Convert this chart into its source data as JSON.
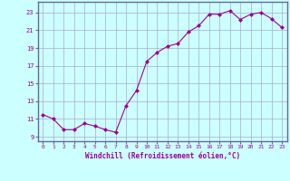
{
  "x": [
    0,
    1,
    2,
    3,
    4,
    5,
    6,
    7,
    8,
    9,
    10,
    11,
    12,
    13,
    14,
    15,
    16,
    17,
    18,
    19,
    20,
    21,
    22,
    23
  ],
  "y": [
    11.5,
    11.0,
    9.8,
    9.8,
    10.5,
    10.2,
    9.8,
    9.5,
    12.5,
    14.2,
    17.5,
    18.5,
    19.2,
    19.5,
    20.8,
    21.5,
    22.8,
    22.8,
    23.2,
    22.2,
    22.8,
    23.0,
    22.3,
    21.3
  ],
  "line_color": "#990099",
  "marker": "D",
  "marker_size": 2,
  "bg_color": "#ccffff",
  "grid_color": "#aaaacc",
  "xlabel": "Windchill (Refroidissement éolien,°C)",
  "xlabel_color": "#990099",
  "tick_color": "#990099",
  "yticks": [
    9,
    11,
    13,
    15,
    17,
    19,
    21,
    23
  ],
  "xticks": [
    0,
    1,
    2,
    3,
    4,
    5,
    6,
    7,
    8,
    9,
    10,
    11,
    12,
    13,
    14,
    15,
    16,
    17,
    18,
    19,
    20,
    21,
    22,
    23
  ],
  "ylim": [
    8.5,
    24.2
  ],
  "xlim": [
    -0.5,
    23.5
  ],
  "spine_color": "#666699"
}
